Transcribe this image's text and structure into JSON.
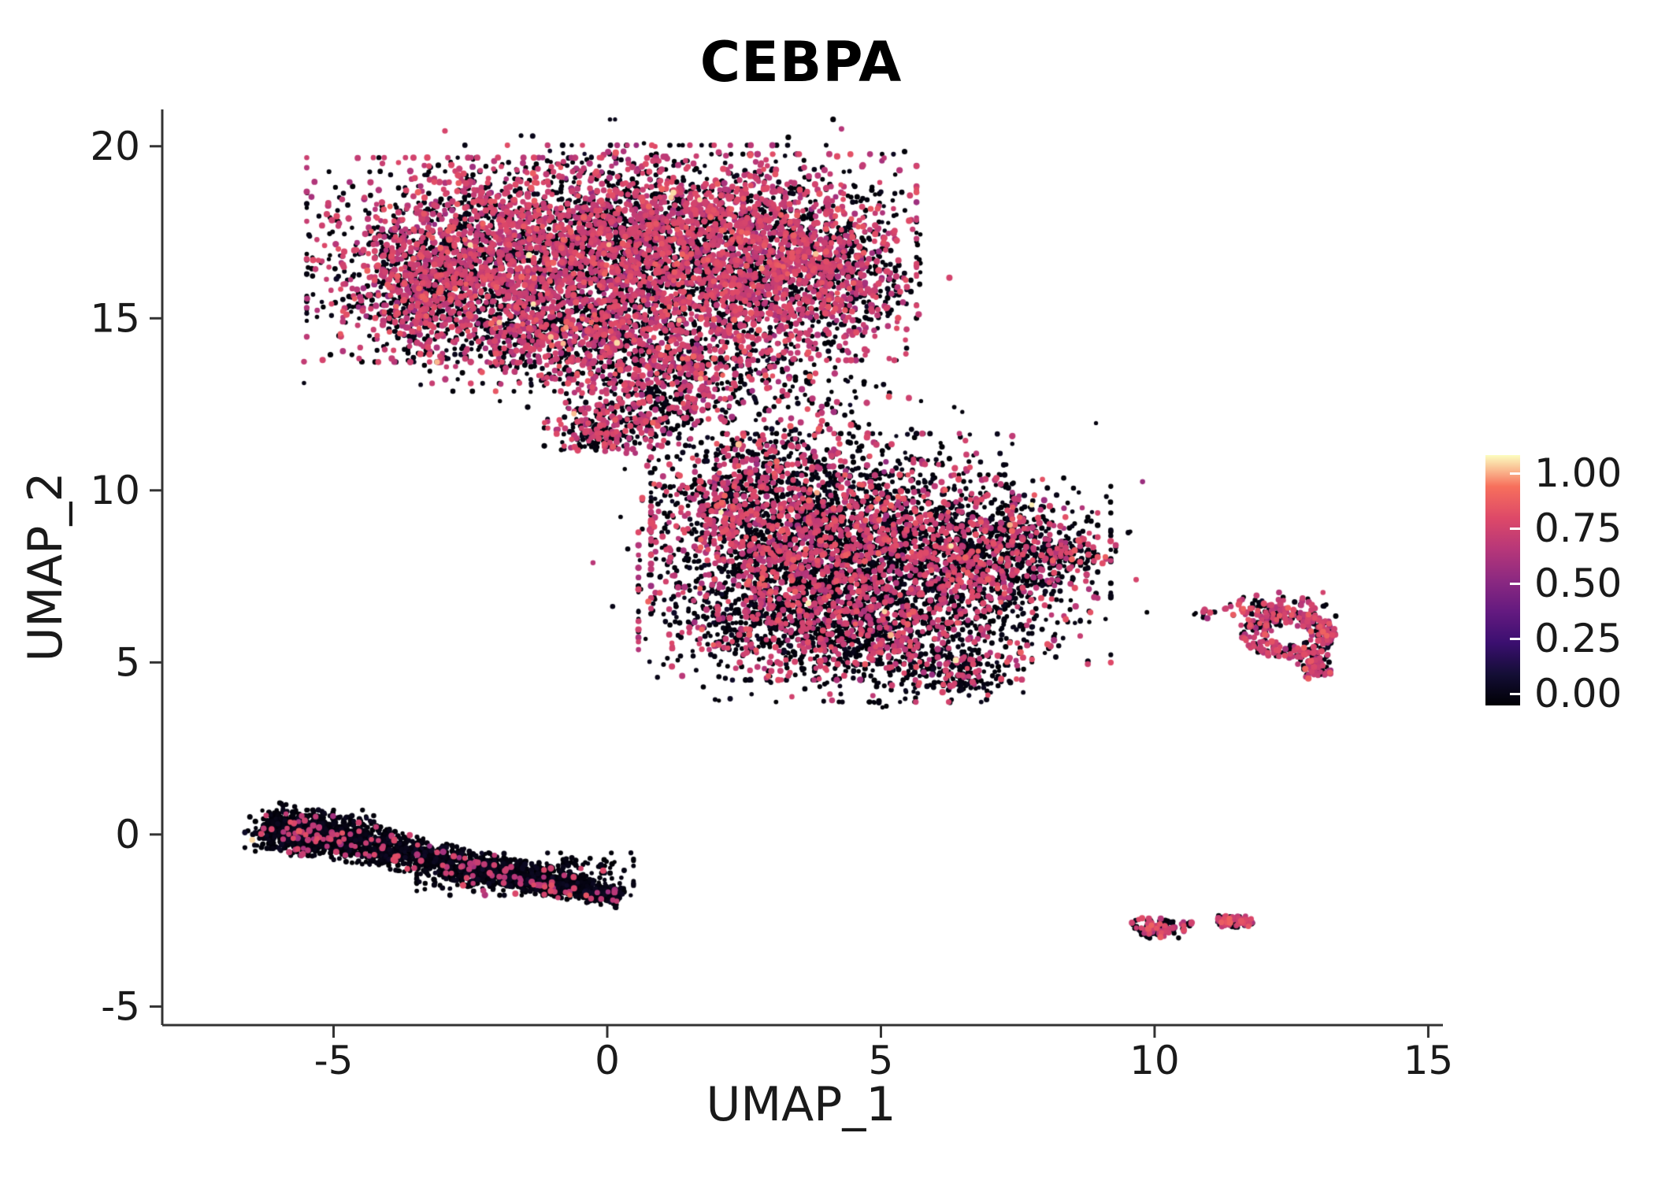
{
  "chart_data": {
    "type": "scatter",
    "title": "CEBPA",
    "xlabel": "UMAP_1",
    "ylabel": "UMAP_2",
    "x_ticks": [
      -5,
      0,
      5,
      10,
      15
    ],
    "y_ticks": [
      -5,
      0,
      5,
      10,
      15,
      20
    ],
    "x_range": [
      -8.13,
      15.21
    ],
    "y_range": [
      -5.54,
      21.07
    ],
    "grid": false,
    "background": "#ffffff",
    "axis_color": "#333333",
    "text_color": "#1a1a1a",
    "title_color": "#000000",
    "seed": 42,
    "colorbar": {
      "position": "right",
      "colormap": "magma",
      "ticks": [
        "1.00",
        "0.75",
        "0.50",
        "0.25",
        "0.00"
      ],
      "tick_values": [
        1.0,
        0.75,
        0.5,
        0.25,
        0.0
      ],
      "stops": [
        {
          "t": 0.0,
          "c": "#000004"
        },
        {
          "t": 0.125,
          "c": "#140e36"
        },
        {
          "t": 0.25,
          "c": "#3b0f70"
        },
        {
          "t": 0.375,
          "c": "#641a80"
        },
        {
          "t": 0.5,
          "c": "#8c2981"
        },
        {
          "t": 0.625,
          "c": "#b73779"
        },
        {
          "t": 0.75,
          "c": "#de4968"
        },
        {
          "t": 0.875,
          "c": "#f7705c"
        },
        {
          "t": 1.0,
          "c": "#fcfdbf"
        }
      ]
    },
    "point_colors": {
      "not_expressed": "#000004",
      "expressed": "#d5456c",
      "high": "#fcfdbf"
    },
    "clusters": [
      {
        "type": "gauss",
        "cx": -2.3,
        "cy": 16.7,
        "sx": 1.45,
        "sy": 1.35,
        "n": 1900,
        "expr_frac": 0.52
      },
      {
        "type": "gauss",
        "cx": 0.7,
        "cy": 17.5,
        "sx": 1.5,
        "sy": 1.15,
        "n": 1800,
        "expr_frac": 0.55
      },
      {
        "type": "gauss",
        "cx": 2.9,
        "cy": 16.8,
        "sx": 1.25,
        "sy": 1.35,
        "n": 1500,
        "expr_frac": 0.55
      },
      {
        "type": "gauss",
        "cx": 0.3,
        "cy": 15.2,
        "sx": 1.7,
        "sy": 0.95,
        "n": 1000,
        "expr_frac": 0.5
      },
      {
        "type": "gauss",
        "cx": -3.4,
        "cy": 15.7,
        "sx": 0.65,
        "sy": 0.85,
        "n": 380,
        "expr_frac": 0.45
      },
      {
        "type": "gauss",
        "cx": 4.4,
        "cy": 16.2,
        "sx": 0.6,
        "sy": 1.1,
        "n": 350,
        "expr_frac": 0.5
      },
      {
        "type": "gauss",
        "cx": -1.0,
        "cy": 14.2,
        "sx": 1.2,
        "sy": 0.6,
        "n": 420,
        "expr_frac": 0.45
      },
      {
        "type": "gauss",
        "cx": 1.5,
        "cy": 13.4,
        "sx": 1.0,
        "sy": 0.65,
        "n": 420,
        "expr_frac": 0.45
      },
      {
        "type": "gauss",
        "cx": 0.5,
        "cy": 12.3,
        "sx": 0.75,
        "sy": 0.5,
        "n": 280,
        "expr_frac": 0.42
      },
      {
        "type": "gauss",
        "cx": -0.1,
        "cy": 11.7,
        "sx": 0.45,
        "sy": 0.28,
        "n": 150,
        "expr_frac": 0.4
      },
      {
        "type": "gauss",
        "cx": 0.4,
        "cy": 16.6,
        "sx": 2.7,
        "sy": 1.9,
        "n": 200,
        "expr_frac": 0.3
      },
      {
        "type": "gauss",
        "cx": 3.9,
        "cy": 12.6,
        "sx": 0.85,
        "sy": 0.75,
        "n": 90,
        "expr_frac": 0.3
      },
      {
        "type": "gauss",
        "cx": 4.1,
        "cy": 8.9,
        "sx": 1.5,
        "sy": 1.25,
        "n": 1700,
        "expr_frac": 0.38
      },
      {
        "type": "gauss",
        "cx": 5.9,
        "cy": 7.7,
        "sx": 1.5,
        "sy": 1.25,
        "n": 1500,
        "expr_frac": 0.32
      },
      {
        "type": "gauss",
        "cx": 3.1,
        "cy": 6.8,
        "sx": 1.15,
        "sy": 1.05,
        "n": 950,
        "expr_frac": 0.3
      },
      {
        "type": "gauss",
        "cx": 4.9,
        "cy": 5.5,
        "sx": 1.3,
        "sy": 0.75,
        "n": 700,
        "expr_frac": 0.28
      },
      {
        "type": "gauss",
        "cx": 2.4,
        "cy": 9.7,
        "sx": 0.8,
        "sy": 0.75,
        "n": 380,
        "expr_frac": 0.36
      },
      {
        "type": "gauss",
        "cx": 7.2,
        "cy": 8.3,
        "sx": 0.8,
        "sy": 0.65,
        "n": 330,
        "expr_frac": 0.3
      },
      {
        "type": "gauss",
        "cx": 8.3,
        "cy": 8.15,
        "sx": 0.45,
        "sy": 0.3,
        "n": 120,
        "expr_frac": 0.3
      },
      {
        "type": "gauss",
        "cx": 4.8,
        "cy": 8.1,
        "sx": 2.3,
        "sy": 1.9,
        "n": 240,
        "expr_frac": 0.2
      },
      {
        "type": "gauss",
        "cx": 2.8,
        "cy": 11.0,
        "sx": 0.9,
        "sy": 0.55,
        "n": 130,
        "expr_frac": 0.3
      },
      {
        "type": "gauss",
        "cx": 5.0,
        "cy": 3.85,
        "sx": 0.12,
        "sy": 0.1,
        "n": 5,
        "expr_frac": 0.2
      },
      {
        "type": "gauss",
        "cx": 6.5,
        "cy": 4.6,
        "sx": 0.5,
        "sy": 0.35,
        "n": 120,
        "expr_frac": 0.25
      },
      {
        "type": "gauss",
        "cx": 12.1,
        "cy": 6.55,
        "sx": 0.55,
        "sy": 0.22,
        "n": 110,
        "expr_frac": 0.45
      },
      {
        "type": "ring",
        "cx": 12.45,
        "cy": 5.8,
        "r0": 0.28,
        "r1": 0.75,
        "n": 300,
        "expr_frac": 0.5
      },
      {
        "type": "line",
        "x0": 12.85,
        "y0": 5.2,
        "x1": 13.05,
        "y1": 4.6,
        "w": 0.15,
        "n": 70,
        "expr_frac": 0.5
      },
      {
        "type": "gauss",
        "cx": 10.9,
        "cy": 6.5,
        "sx": 0.08,
        "sy": 0.06,
        "n": 5,
        "expr_frac": 0.2
      },
      {
        "type": "line",
        "x0": -6.25,
        "y0": 0.3,
        "x1": 0.25,
        "y1": -1.85,
        "w": 0.24,
        "n": 2000,
        "expr_frac": 0.05,
        "taper": 0.8
      },
      {
        "type": "gauss",
        "cx": -5.3,
        "cy": 0.05,
        "sx": 0.6,
        "sy": 0.3,
        "n": 500,
        "expr_frac": 0.07
      },
      {
        "type": "gauss",
        "cx": -1.5,
        "cy": -1.15,
        "sx": 0.9,
        "sy": 0.28,
        "n": 350,
        "expr_frac": 0.05
      },
      {
        "type": "gauss",
        "cx": 10.05,
        "cy": -2.72,
        "sx": 0.22,
        "sy": 0.13,
        "n": 130,
        "expr_frac": 0.35
      },
      {
        "type": "gauss",
        "cx": 10.7,
        "cy": -2.6,
        "sx": 0.06,
        "sy": 0.05,
        "n": 6,
        "expr_frac": 0.3
      },
      {
        "type": "line",
        "x0": 11.15,
        "y0": -2.48,
        "x1": 11.8,
        "y1": -2.58,
        "w": 0.09,
        "n": 90,
        "expr_frac": 0.55
      }
    ]
  }
}
